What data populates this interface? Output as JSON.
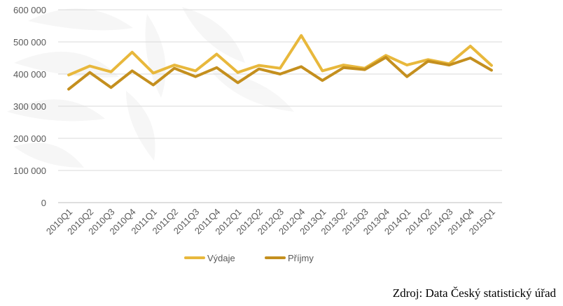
{
  "chart_data": {
    "type": "line",
    "categories": [
      "2010Q1",
      "2010Q2",
      "2010Q3",
      "2010Q4",
      "2011Q1",
      "2011Q2",
      "2011Q3",
      "2011Q4",
      "2012Q1",
      "2012Q2",
      "2012Q3",
      "2012Q4",
      "2013Q1",
      "2013Q2",
      "2013Q3",
      "2013Q4",
      "2014Q1",
      "2014Q2",
      "2014Q3",
      "2014Q4",
      "2015Q1"
    ],
    "series": [
      {
        "name": "Výdaje",
        "color": "#e8b83c",
        "values": [
          397000,
          425000,
          407000,
          468000,
          403000,
          428000,
          410000,
          462000,
          405000,
          427000,
          418000,
          520000,
          410000,
          428000,
          418000,
          458000,
          428000,
          445000,
          432000,
          487000,
          427000
        ]
      },
      {
        "name": "Příjmy",
        "color": "#c48f1e",
        "values": [
          353000,
          405000,
          358000,
          410000,
          366000,
          418000,
          392000,
          420000,
          373000,
          416000,
          400000,
          423000,
          380000,
          420000,
          414000,
          452000,
          392000,
          440000,
          428000,
          450000,
          412000
        ]
      }
    ],
    "ylim": [
      0,
      600000
    ],
    "yticks": [
      0,
      100000,
      200000,
      300000,
      400000,
      500000,
      600000
    ],
    "ytick_labels": [
      "0",
      "100 000",
      "200 000",
      "300 000",
      "400 000",
      "500 000",
      "600 000"
    ],
    "grid": true,
    "legend_position": "bottom"
  },
  "source": "Zdroj: Data Český statistický úřad"
}
